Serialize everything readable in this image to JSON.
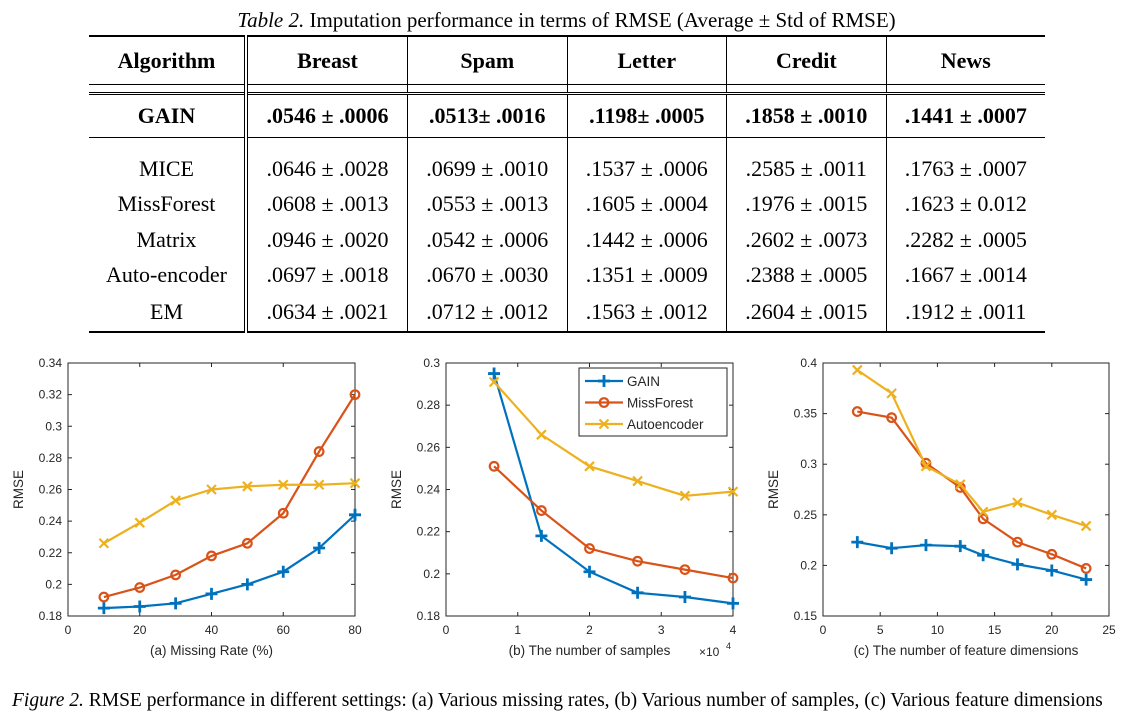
{
  "table": {
    "caption_label": "Table 2.",
    "caption_text": "Imputation performance in terms of RMSE (Average ± Std of RMSE)",
    "headers": [
      "Algorithm",
      "Breast",
      "Spam",
      "Letter",
      "Credit",
      "News"
    ],
    "gain_row": [
      "GAIN",
      ".0546 ± .0006",
      ".0513± .0016",
      ".1198± .0005",
      ".1858 ± .0010",
      ".1441 ± .0007"
    ],
    "rows": [
      [
        "MICE",
        ".0646 ± .0028",
        ".0699 ± .0010",
        ".1537 ± .0006",
        ".2585 ± .0011",
        ".1763 ± .0007"
      ],
      [
        "MissForest",
        ".0608 ± .0013",
        ".0553 ± .0013",
        ".1605 ± .0004",
        ".1976 ± .0015",
        ".1623 ± 0.012"
      ],
      [
        "Matrix",
        ".0946 ± .0020",
        ".0542 ± .0006",
        ".1442 ± .0006",
        ".2602 ± .0073",
        ".2282 ± .0005"
      ],
      [
        "Auto-encoder",
        ".0697 ± .0018",
        ".0670 ± .0030",
        ".1351 ± .0009",
        ".2388 ± .0005",
        ".1667 ± .0014"
      ],
      [
        "EM",
        ".0634 ± .0021",
        ".0712 ± .0012",
        ".1563 ± .0012",
        ".2604 ± .0015",
        ".1912 ± .0011"
      ]
    ]
  },
  "figure": {
    "caption_label": "Figure 2.",
    "caption_text": "RMSE performance in different settings: (a) Various missing rates, (b) Various number of samples, (c) Various feature dimensions"
  },
  "colors": {
    "gain": "#0072BD",
    "missforest": "#D95319",
    "autoencoder": "#EDB120",
    "axis": "#262626",
    "grid": "#b0b0b0"
  },
  "chart_data": [
    {
      "type": "line",
      "xlabel": "(a) Missing Rate (%)",
      "ylabel": "RMSE",
      "xlim": [
        0,
        80
      ],
      "ylim": [
        0.18,
        0.34
      ],
      "xticks": [
        0,
        20,
        40,
        60,
        80
      ],
      "xtick_labels": [
        "0",
        "20",
        "40",
        "60",
        "80"
      ],
      "yticks": [
        0.18,
        0.2,
        0.22,
        0.24,
        0.26,
        0.28,
        0.3,
        0.32,
        0.34
      ],
      "ytick_labels": [
        "0.18",
        "0.2",
        "0.22",
        "0.24",
        "0.26",
        "0.28",
        "0.3",
        "0.32",
        "0.34"
      ],
      "x": [
        10,
        20,
        30,
        40,
        50,
        60,
        70,
        80
      ],
      "series": [
        {
          "key": "gain",
          "values": [
            0.185,
            0.186,
            0.188,
            0.194,
            0.2,
            0.208,
            0.223,
            0.244
          ]
        },
        {
          "key": "missforest",
          "values": [
            0.192,
            0.198,
            0.206,
            0.218,
            0.226,
            0.245,
            0.284,
            0.32
          ]
        },
        {
          "key": "autoencoder",
          "values": [
            0.226,
            0.239,
            0.253,
            0.26,
            0.262,
            0.263,
            0.263,
            0.264
          ]
        }
      ],
      "grid": false
    },
    {
      "type": "line",
      "xlabel": "(b) The number of samples",
      "ylabel": "RMSE",
      "x_exponent": "×10",
      "x_exponent_power": "4",
      "xlim": [
        0,
        4
      ],
      "ylim": [
        0.18,
        0.3
      ],
      "xticks": [
        0,
        1,
        2,
        3,
        4
      ],
      "xtick_labels": [
        "0",
        "1",
        "2",
        "3",
        "4"
      ],
      "yticks": [
        0.18,
        0.2,
        0.22,
        0.24,
        0.26,
        0.28,
        0.3
      ],
      "ytick_labels": [
        "0.18",
        "0.2",
        "0.22",
        "0.24",
        "0.26",
        "0.28",
        "0.3"
      ],
      "series": [
        {
          "name": "GAIN",
          "key": "gain",
          "x": [
            0.67,
            1.33,
            2.0,
            2.67,
            3.33,
            4.0
          ],
          "values": [
            0.295,
            0.218,
            0.201,
            0.191,
            0.189,
            0.186
          ]
        },
        {
          "name": "MissForest",
          "key": "missforest",
          "x": [
            0.67,
            1.33,
            2.0,
            2.67,
            3.33,
            4.0
          ],
          "values": [
            0.251,
            0.23,
            0.212,
            0.206,
            0.202,
            0.198
          ]
        },
        {
          "name": "Autoencoder",
          "key": "autoencoder",
          "x": [
            0.67,
            1.33,
            2.0,
            2.67,
            3.33,
            4.0
          ],
          "values": [
            0.291,
            0.266,
            0.251,
            0.244,
            0.237,
            0.239
          ]
        }
      ],
      "legend": "top-right",
      "grid": false
    },
    {
      "type": "line",
      "xlabel": "(c) The number of feature dimensions",
      "ylabel": "RMSE",
      "xlim": [
        0,
        25
      ],
      "ylim": [
        0.15,
        0.4
      ],
      "xticks": [
        0,
        5,
        10,
        15,
        20,
        25
      ],
      "xtick_labels": [
        "0",
        "5",
        "10",
        "15",
        "20",
        "25"
      ],
      "yticks": [
        0.15,
        0.2,
        0.25,
        0.3,
        0.35,
        0.4
      ],
      "ytick_labels": [
        "0.15",
        "0.2",
        "0.25",
        "0.3",
        "0.35",
        "0.4"
      ],
      "x": [
        3,
        6,
        9,
        12,
        14,
        17,
        20,
        23
      ],
      "series": [
        {
          "key": "gain",
          "values": [
            0.223,
            0.217,
            0.22,
            0.219,
            0.21,
            0.201,
            0.195,
            0.186
          ]
        },
        {
          "key": "missforest",
          "values": [
            0.352,
            0.346,
            0.301,
            0.277,
            0.246,
            0.223,
            0.211,
            0.197
          ]
        },
        {
          "key": "autoencoder",
          "values": [
            0.393,
            0.37,
            0.298,
            0.28,
            0.253,
            0.262,
            0.25,
            0.239
          ]
        }
      ],
      "grid": false
    }
  ]
}
